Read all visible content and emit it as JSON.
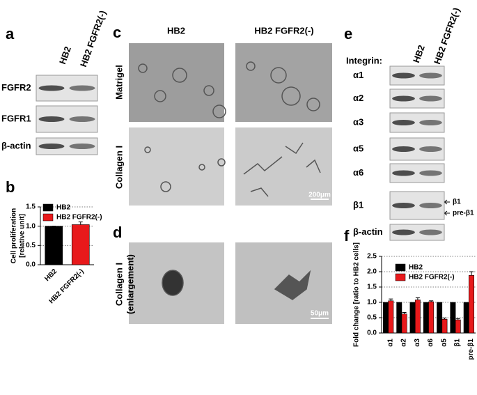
{
  "panel_a": {
    "label": "a",
    "columns": [
      "HB2",
      "HB2 FGFR2(-)"
    ],
    "rows": [
      "FGFR2",
      "FGFR1",
      "β-actin"
    ]
  },
  "panel_c": {
    "label": "c",
    "columns": [
      "HB2",
      "HB2 FGFR2(-)"
    ],
    "rows": [
      "Matrigel",
      "Collagen I"
    ],
    "scale_bar": "200μm"
  },
  "panel_d": {
    "label": "d",
    "row": [
      "Collagen I",
      "(enlargement)"
    ],
    "scale_bar": "50μm"
  },
  "panel_e": {
    "label": "e",
    "header": "Integrin:",
    "columns": [
      "HB2",
      "HB2 FGFR2(-)"
    ],
    "rows": [
      "α1",
      "α2",
      "α3",
      "α5",
      "α6",
      "β1",
      "β-actin"
    ],
    "arrows": [
      "β1",
      "pre-β1"
    ]
  },
  "chart_data": [
    {
      "type": "bar",
      "label": "b",
      "ylabel": [
        "Cell proliferation",
        "[relative unit]"
      ],
      "categories": [
        "HB2",
        "HB2 FGFR2(-)"
      ],
      "values": [
        1.0,
        1.04
      ],
      "errors": [
        0,
        0.07
      ],
      "colors": [
        "#000000",
        "#e8191b"
      ],
      "legend": [
        "HB2",
        "HB2 FGFR2(-)"
      ],
      "ylim": [
        0,
        1.5
      ],
      "yticks": [
        {
          "value": 0,
          "label": "0.0"
        },
        0.5,
        {
          "value": 1,
          "label": "1.0"
        },
        1.5
      ],
      "grid": true
    },
    {
      "type": "grouped-bar",
      "label": "f",
      "ylabel": "Fold change [ratio to HB2 cells]",
      "categories": [
        "α1",
        "α2",
        "α3",
        "α6",
        "α5",
        "β1",
        "pre-β1"
      ],
      "series": [
        {
          "name": "HB2",
          "color": "#000000",
          "values": [
            1,
            1,
            1,
            1,
            1,
            1,
            1
          ]
        },
        {
          "name": "HB2 FGFR2(-)",
          "color": "#e8191b",
          "values": [
            1.05,
            0.62,
            1.08,
            1.02,
            0.45,
            0.43,
            1.88
          ],
          "errors": [
            0.06,
            0.05,
            0.07,
            0.03,
            0.04,
            0.04,
            0.12
          ]
        }
      ],
      "ylim": [
        0,
        2.5
      ],
      "yticks": [
        {
          "value": 0,
          "label": "0.0"
        },
        0.5,
        {
          "value": 1,
          "label": "1.0"
        },
        1.5,
        {
          "value": 2,
          "label": "2.0"
        },
        2.5
      ],
      "grid": true
    }
  ]
}
